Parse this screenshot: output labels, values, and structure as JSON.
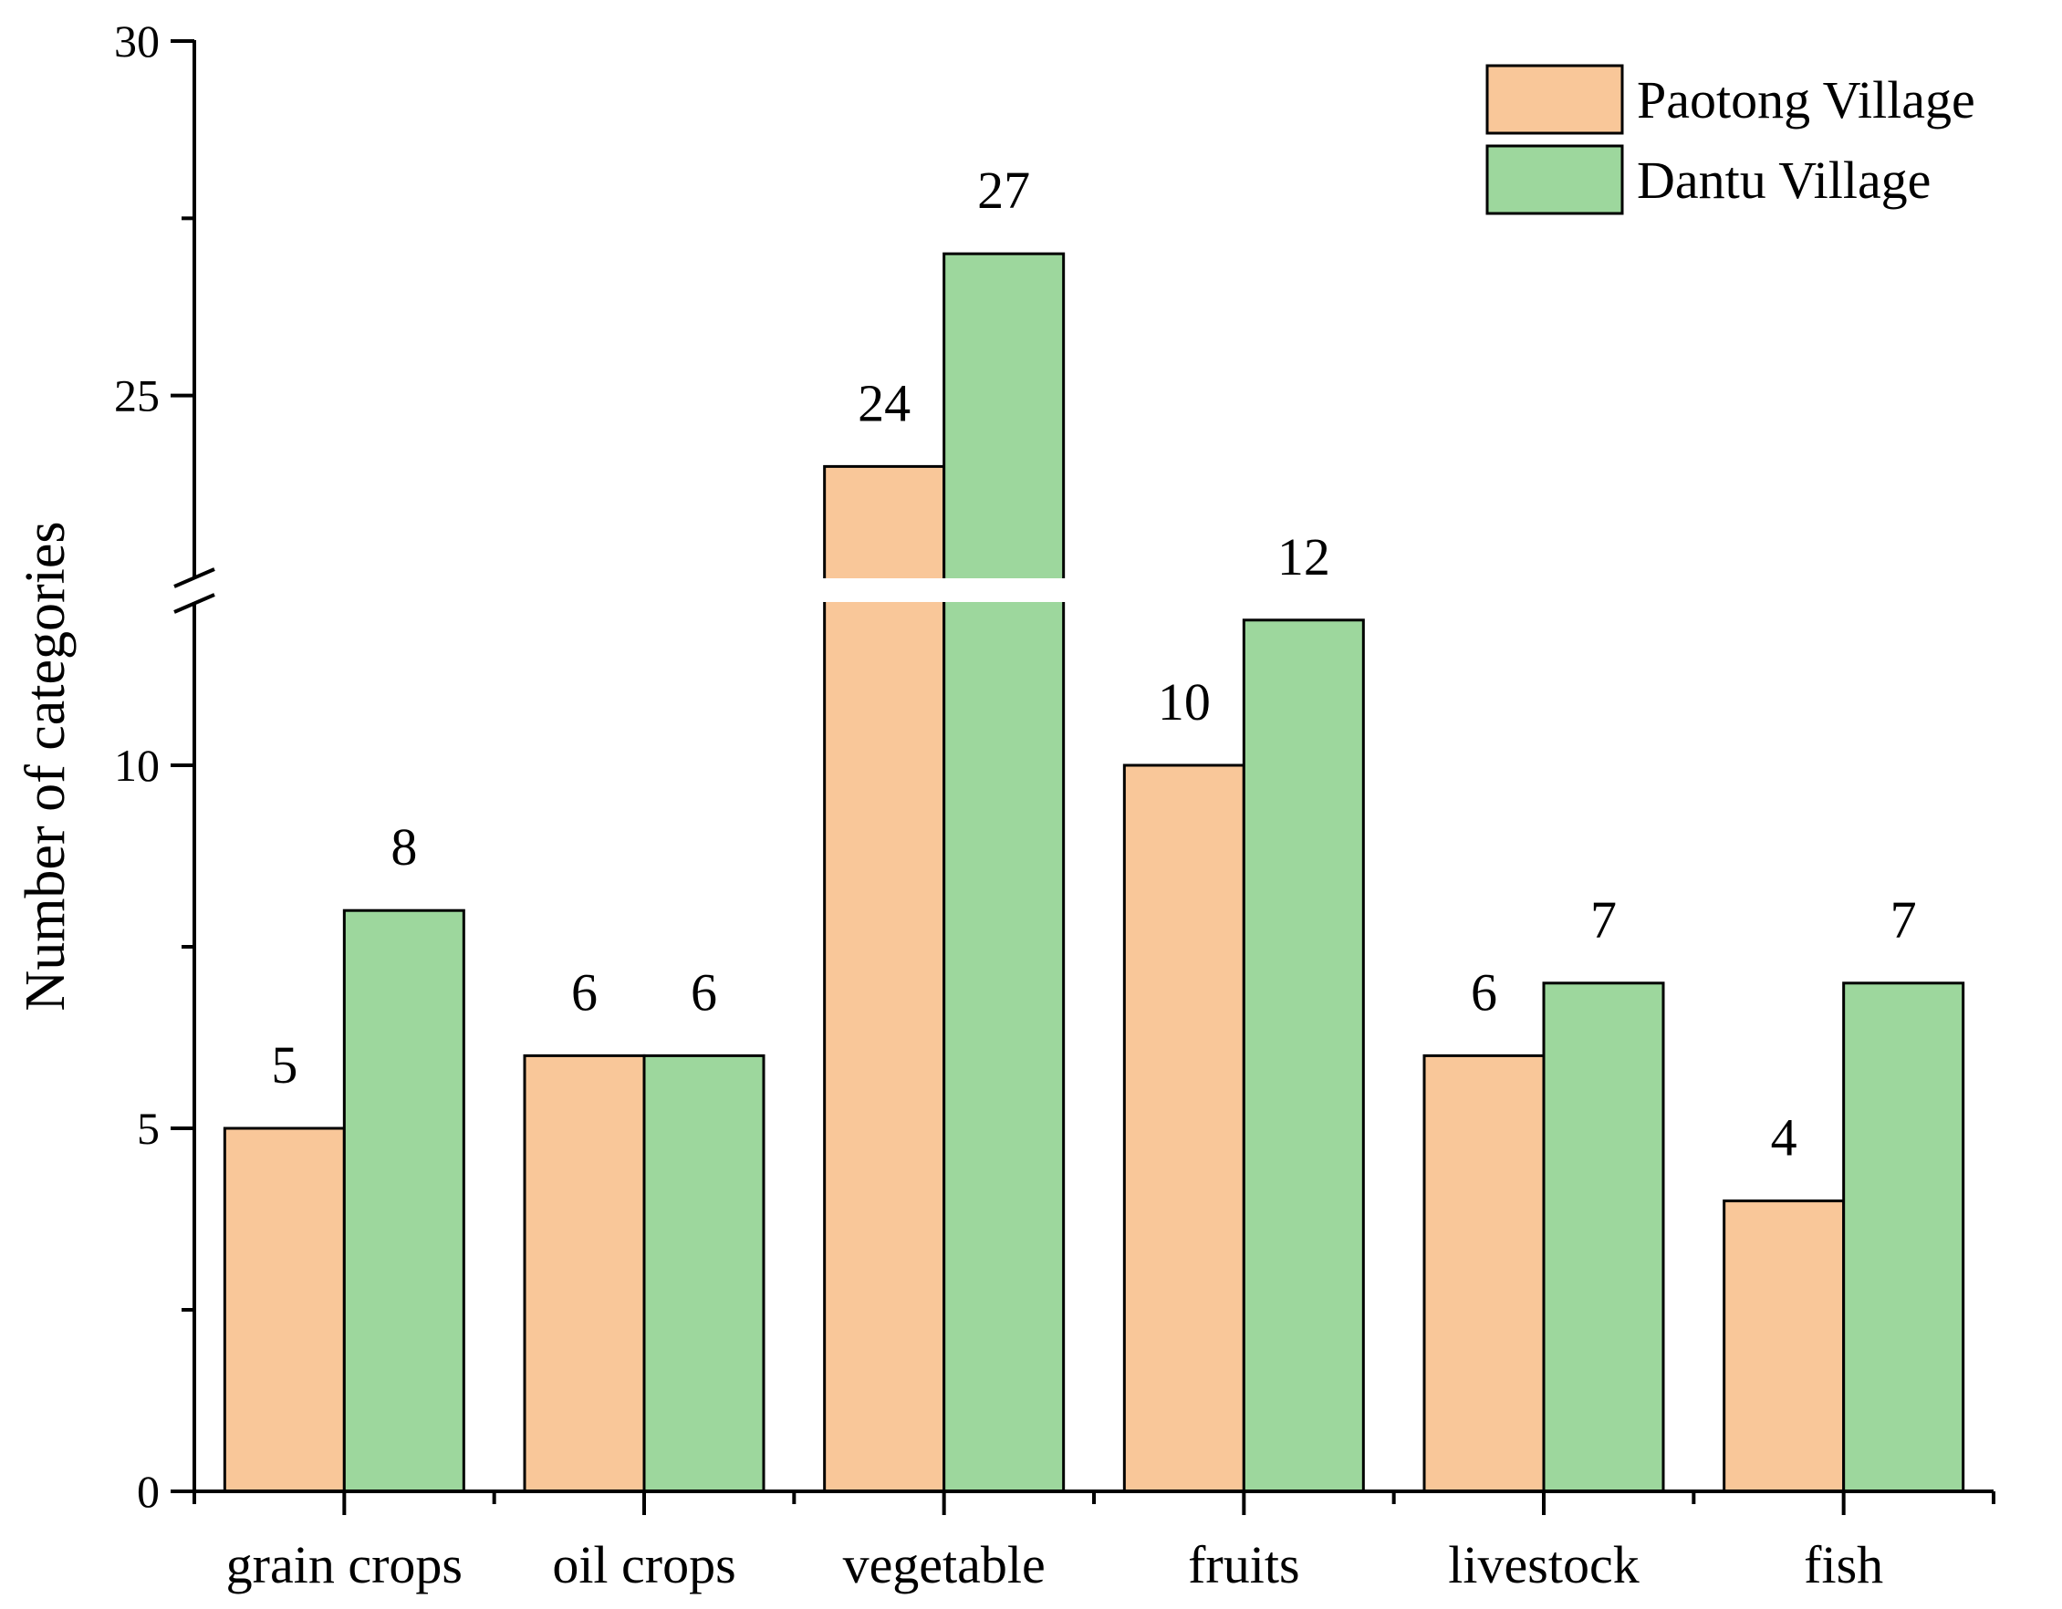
{
  "chart_data": {
    "type": "bar",
    "title": "",
    "xlabel": "",
    "ylabel": "Number of categories",
    "categories": [
      "grain crops",
      "oil crops",
      "vegetable",
      "fruits",
      "livestock",
      "fish"
    ],
    "series": [
      {
        "name": "Paotong Village",
        "color": "#F9C799",
        "values": [
          5,
          6,
          24,
          10,
          6,
          4
        ]
      },
      {
        "name": "Dantu Village",
        "color": "#9DD79D",
        "values": [
          8,
          6,
          27,
          12,
          7,
          7
        ]
      }
    ],
    "ylim": [
      0,
      30
    ],
    "axis_break": {
      "lower_max": 12.5,
      "upper_min": 22.5
    },
    "yticks_labeled": [
      0,
      5,
      10,
      25,
      30
    ],
    "yticks_minor": [
      2.5,
      7.5,
      27.5
    ],
    "grid": false,
    "legend_position": "top-right"
  }
}
